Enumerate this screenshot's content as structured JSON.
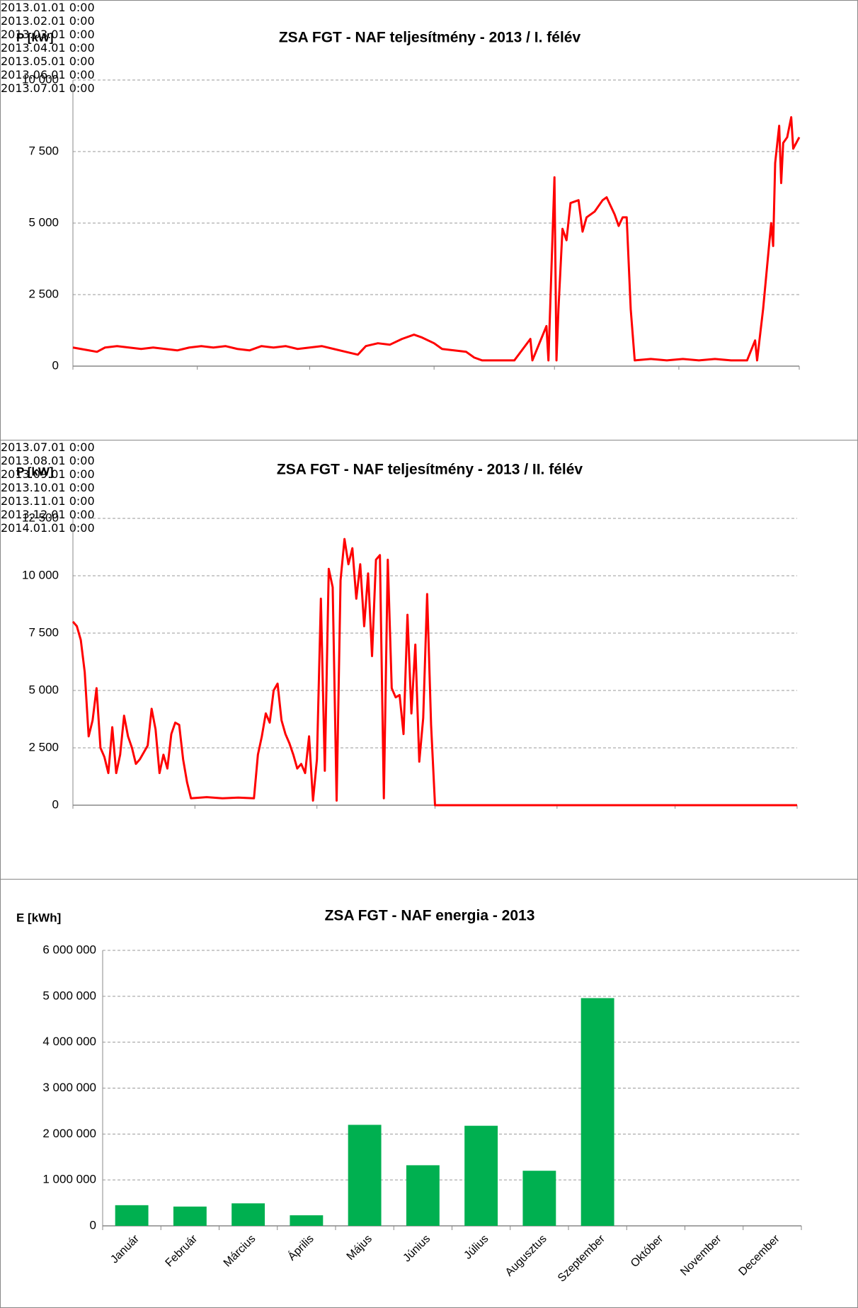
{
  "chart_data": [
    {
      "type": "line",
      "title": "ZSA FGT  - NAF teljesítmény - 2013 / I. félév",
      "y_label": "P [kW]",
      "color": "#ff0000",
      "grid": true,
      "xlim": [
        "2013.01.01 0:00",
        "2013.07.01 0:00"
      ],
      "xticks": [
        "2013.01.01 0:00",
        "2013.02.01 0:00",
        "2013.03.01 0:00",
        "2013.04.01 0:00",
        "2013.05.01 0:00",
        "2013.06.01 0:00",
        "2013.07.01 0:00"
      ],
      "ylim": [
        0,
        10000
      ],
      "yticks": [
        0,
        {
          "value": 2500,
          "label": "2 500"
        },
        {
          "value": 5000,
          "label": "5 000"
        },
        {
          "value": 7500,
          "label": "7 500"
        },
        {
          "value": 10000,
          "label": "10 000"
        }
      ],
      "x": [
        "2013.01.01",
        "2013.01.03",
        "2013.01.05",
        "2013.01.07",
        "2013.01.09",
        "2013.01.12",
        "2013.01.15",
        "2013.01.18",
        "2013.01.21",
        "2013.01.24",
        "2013.01.27",
        "2013.01.30",
        "2013.02.02",
        "2013.02.05",
        "2013.02.08",
        "2013.02.11",
        "2013.02.14",
        "2013.02.17",
        "2013.02.20",
        "2013.02.23",
        "2013.02.26",
        "2013.03.01",
        "2013.03.04",
        "2013.03.07",
        "2013.03.10",
        "2013.03.13",
        "2013.03.15",
        "2013.03.18",
        "2013.03.21",
        "2013.03.24",
        "2013.03.27",
        "2013.03.29",
        "2013.04.01",
        "2013.04.03",
        "2013.04.06",
        "2013.04.09",
        "2013.04.11",
        "2013.04.13",
        "2013.04.17",
        "2013.04.21",
        "2013.04.25",
        "2013.04.25 12:00",
        "2013.04.29",
        "2013.04.29 12:00",
        "2013.05.01",
        "2013.05.01 12:00",
        "2013.05.02",
        "2013.05.03",
        "2013.05.04",
        "2013.05.05",
        "2013.05.07",
        "2013.05.08",
        "2013.05.09",
        "2013.05.11",
        "2013.05.13",
        "2013.05.14",
        "2013.05.15",
        "2013.05.16",
        "2013.05.17",
        "2013.05.18",
        "2013.05.19",
        "2013.05.20",
        "2013.05.21",
        "2013.05.25",
        "2013.05.29",
        "2013.06.02",
        "2013.06.06",
        "2013.06.10",
        "2013.06.14",
        "2013.06.18",
        "2013.06.20",
        "2013.06.20 12:00",
        "2013.06.22",
        "2013.06.24",
        "2013.06.24 12:00",
        "2013.06.25",
        "2013.06.26",
        "2013.06.26 12:00",
        "2013.06.27",
        "2013.06.28",
        "2013.06.29",
        "2013.06.29 12:00",
        "2013.07.01"
      ],
      "values": [
        650,
        600,
        550,
        500,
        650,
        700,
        650,
        600,
        650,
        600,
        550,
        650,
        700,
        650,
        700,
        600,
        550,
        700,
        650,
        700,
        600,
        650,
        700,
        600,
        500,
        400,
        700,
        800,
        750,
        950,
        1100,
        1000,
        800,
        600,
        550,
        500,
        300,
        200,
        200,
        200,
        950,
        200,
        1400,
        200,
        6600,
        200,
        2000,
        4800,
        4400,
        5700,
        5800,
        4700,
        5200,
        5400,
        5800,
        5900,
        5600,
        5300,
        4900,
        5200,
        5200,
        2000,
        200,
        250,
        200,
        250,
        200,
        250,
        200,
        200,
        900,
        200,
        2000,
        5000,
        4200,
        7100,
        8400,
        6400,
        7800,
        8000,
        8700,
        7600,
        8000
      ]
    },
    {
      "type": "line",
      "title": "ZSA FGT  - NAF teljesítmény - 2013 / II. félév",
      "y_label": "P [kW]",
      "color": "#ff0000",
      "grid": true,
      "xlim": [
        "2013.07.01 0:00",
        "2014.01.01 0:00"
      ],
      "xticks": [
        "2013.07.01 0:00",
        "2013.08.01 0:00",
        "2013.09.01 0:00",
        "2013.10.01 0:00",
        "2013.11.01 0:00",
        "2013.12.01 0:00",
        "2014.01.01 0:00"
      ],
      "ylim": [
        0,
        12500
      ],
      "yticks": [
        0,
        {
          "value": 2500,
          "label": "2 500"
        },
        {
          "value": 5000,
          "label": "5 000"
        },
        {
          "value": 7500,
          "label": "7 500"
        },
        {
          "value": 10000,
          "label": "10 000"
        },
        {
          "value": 12500,
          "label": "12 500"
        }
      ],
      "x": [
        "2013.07.01",
        "2013.07.02",
        "2013.07.03",
        "2013.07.04",
        "2013.07.05",
        "2013.07.06",
        "2013.07.07",
        "2013.07.08",
        "2013.07.09",
        "2013.07.10",
        "2013.07.11",
        "2013.07.12",
        "2013.07.13",
        "2013.07.14",
        "2013.07.15",
        "2013.07.16",
        "2013.07.17",
        "2013.07.18",
        "2013.07.20",
        "2013.07.21",
        "2013.07.22",
        "2013.07.23",
        "2013.07.24",
        "2013.07.25",
        "2013.07.26",
        "2013.07.27",
        "2013.07.28",
        "2013.07.29",
        "2013.07.30",
        "2013.07.31",
        "2013.08.04",
        "2013.08.08",
        "2013.08.12",
        "2013.08.16",
        "2013.08.17",
        "2013.08.18",
        "2013.08.19",
        "2013.08.20",
        "2013.08.21",
        "2013.08.22",
        "2013.08.23",
        "2013.08.24",
        "2013.08.25",
        "2013.08.26",
        "2013.08.27",
        "2013.08.28",
        "2013.08.29",
        "2013.08.30",
        "2013.08.31",
        "2013.09.01",
        "2013.09.02",
        "2013.09.03",
        "2013.09.04",
        "2013.09.05",
        "2013.09.06",
        "2013.09.07",
        "2013.09.08",
        "2013.09.09",
        "2013.09.10",
        "2013.09.11",
        "2013.09.12",
        "2013.09.13",
        "2013.09.14",
        "2013.09.15",
        "2013.09.16",
        "2013.09.17",
        "2013.09.18",
        "2013.09.19",
        "2013.09.20",
        "2013.09.21",
        "2013.09.22",
        "2013.09.23",
        "2013.09.24",
        "2013.09.25",
        "2013.09.26",
        "2013.09.27",
        "2013.09.28",
        "2013.09.29",
        "2013.09.30",
        "2013.10.01",
        "2013.11.01",
        "2013.12.01",
        "2014.01.01"
      ],
      "values": [
        8000,
        7800,
        7200,
        5800,
        3000,
        3700,
        5100,
        2500,
        2100,
        1400,
        3400,
        1400,
        2200,
        3900,
        3000,
        2500,
        1800,
        2000,
        2600,
        4200,
        3300,
        1400,
        2200,
        1600,
        3100,
        3600,
        3500,
        2000,
        1000,
        300,
        350,
        300,
        330,
        300,
        2200,
        3000,
        4000,
        3600,
        5000,
        5300,
        3700,
        3100,
        2700,
        2200,
        1600,
        1800,
        1400,
        3000,
        200,
        2000,
        9000,
        1500,
        10300,
        9500,
        200,
        9800,
        11600,
        10500,
        11200,
        9000,
        10500,
        7800,
        10100,
        6500,
        10700,
        10900,
        300,
        10700,
        5100,
        4700,
        4800,
        3100,
        8300,
        4000,
        7000,
        1900,
        3800,
        9200,
        3500,
        0,
        0,
        0,
        0
      ]
    },
    {
      "type": "bar",
      "title": "ZSA FGT - NAF energia - 2013",
      "y_label": "E [kWh]",
      "color": "#00b050",
      "grid": true,
      "categories": [
        "Január",
        "Február",
        "Március",
        "Április",
        "Május",
        "Június",
        "Július",
        "Augusztus",
        "Szeptember",
        "Október",
        "November",
        "December"
      ],
      "values": [
        450000,
        420000,
        490000,
        230000,
        2200000,
        1320000,
        2180000,
        1200000,
        4960000,
        0,
        0,
        0
      ],
      "ylim": [
        0,
        6000000
      ],
      "yticks": [
        0,
        {
          "value": 1000000,
          "label": "1 000 000"
        },
        {
          "value": 2000000,
          "label": "2 000 000"
        },
        {
          "value": 3000000,
          "label": "3 000 000"
        },
        {
          "value": 4000000,
          "label": "4 000 000"
        },
        {
          "value": 5000000,
          "label": "5 000 000"
        },
        {
          "value": 6000000,
          "label": "6 000 000"
        }
      ]
    }
  ]
}
